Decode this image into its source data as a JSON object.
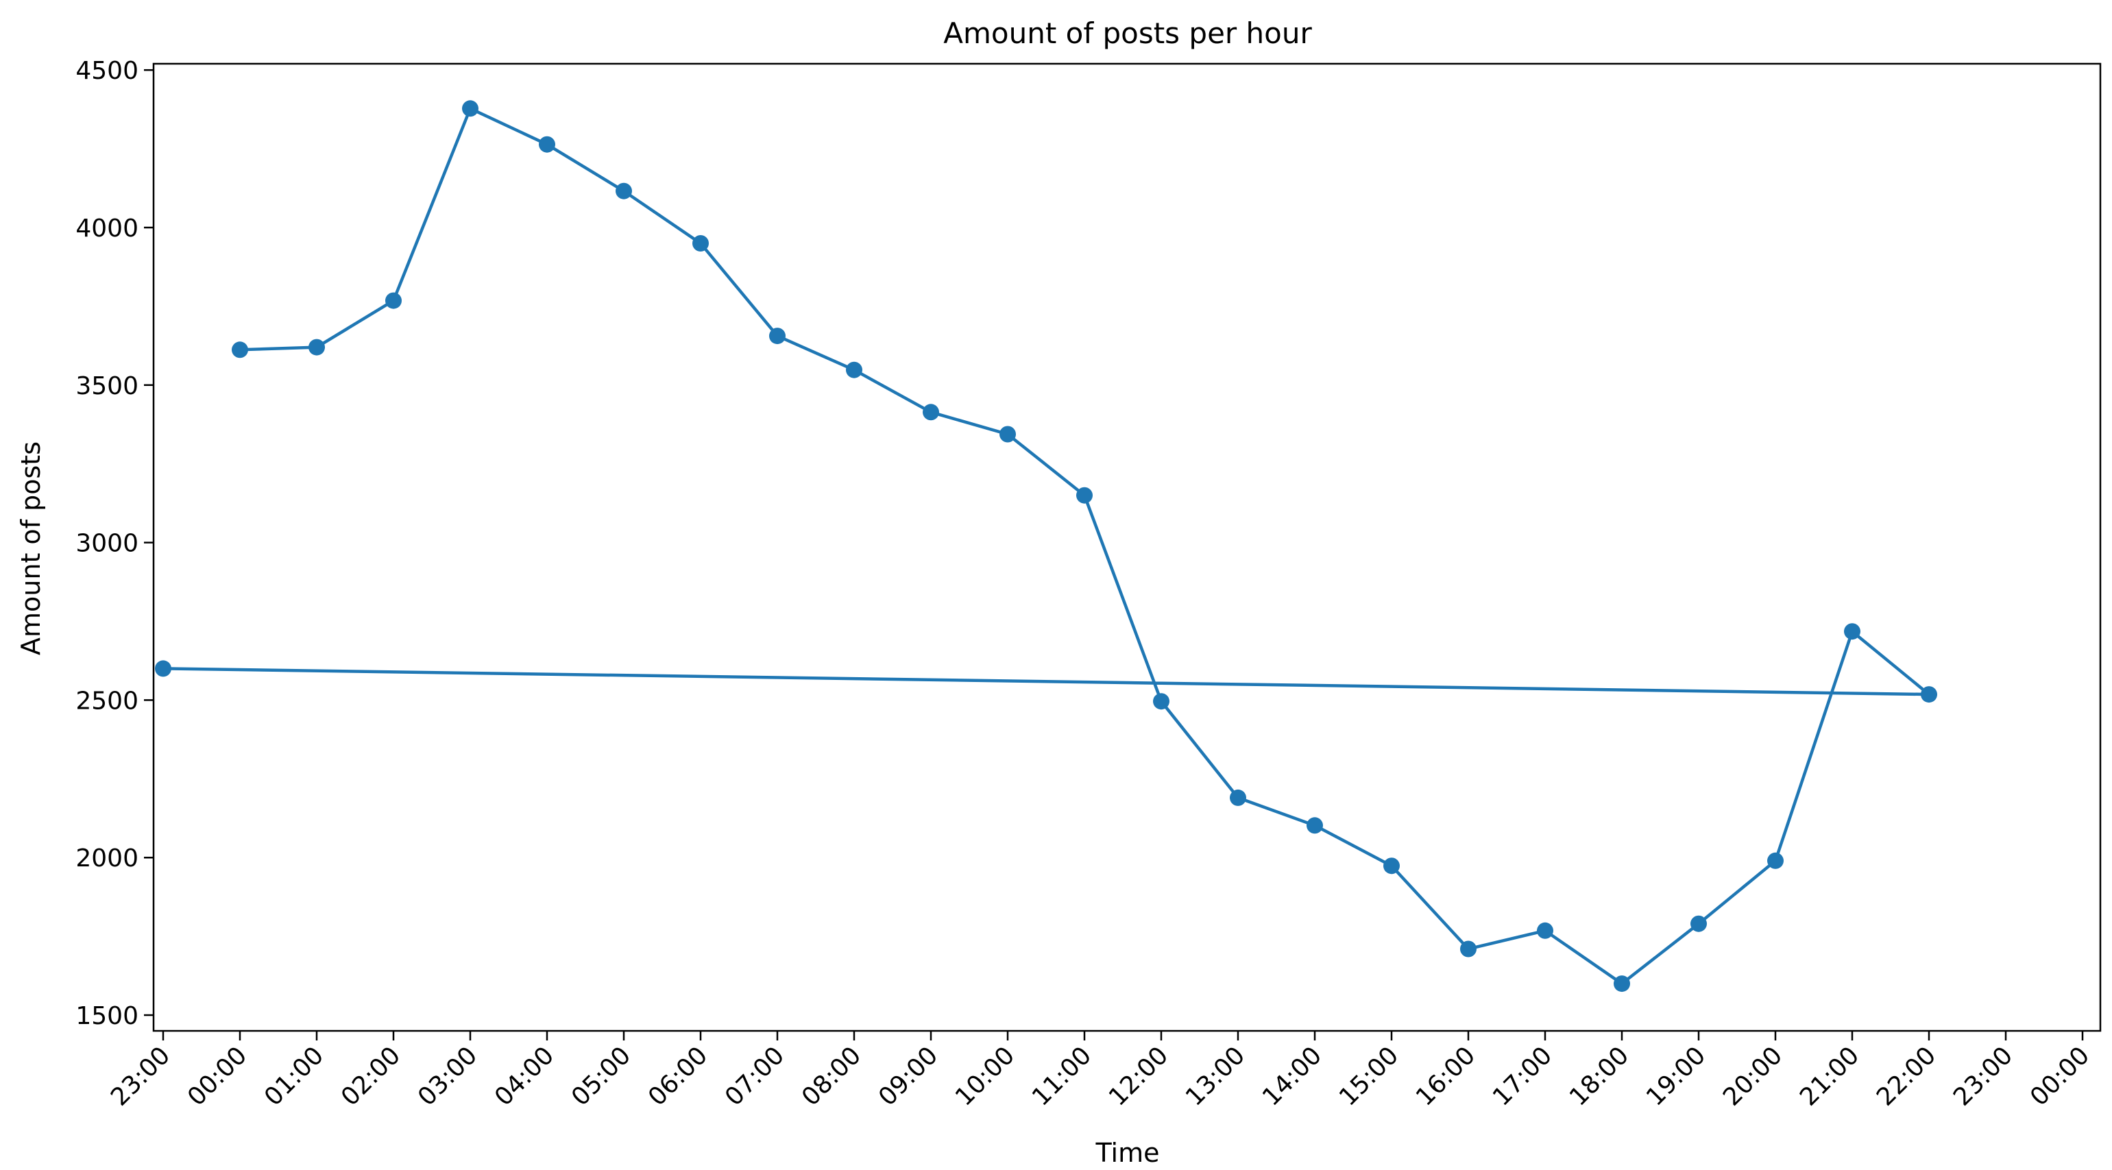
{
  "chart_data": {
    "type": "line",
    "title": "Amount of posts per hour",
    "xlabel": "Time",
    "ylabel": "Amount of posts",
    "x_ticks": [
      "23:00",
      "00:00",
      "01:00",
      "02:00",
      "03:00",
      "04:00",
      "05:00",
      "06:00",
      "07:00",
      "08:00",
      "09:00",
      "10:00",
      "11:00",
      "12:00",
      "13:00",
      "14:00",
      "15:00",
      "16:00",
      "17:00",
      "18:00",
      "19:00",
      "20:00",
      "21:00",
      "22:00",
      "23:00",
      "00:00"
    ],
    "y_ticks": [
      1500,
      2000,
      2500,
      3000,
      3500,
      4000,
      4500
    ],
    "ylim": [
      1450,
      4520
    ],
    "grid": false,
    "series": [
      {
        "color": "#1f77b4",
        "marker": "circle",
        "x": [
          "00:00",
          "01:00",
          "02:00",
          "03:00",
          "04:00",
          "05:00",
          "06:00",
          "07:00",
          "08:00",
          "09:00",
          "10:00",
          "11:00",
          "12:00",
          "13:00",
          "14:00",
          "15:00",
          "16:00",
          "17:00",
          "18:00",
          "19:00",
          "20:00",
          "21:00",
          "22:00",
          "23:00"
        ],
        "values": [
          3612,
          3620,
          3768,
          4378,
          4264,
          4116,
          3950,
          3656,
          3548,
          3414,
          3344,
          3150,
          2496,
          2190,
          2102,
          1974,
          1710,
          1768,
          1600,
          1790,
          1990,
          2718,
          2518,
          2600
        ]
      }
    ]
  }
}
